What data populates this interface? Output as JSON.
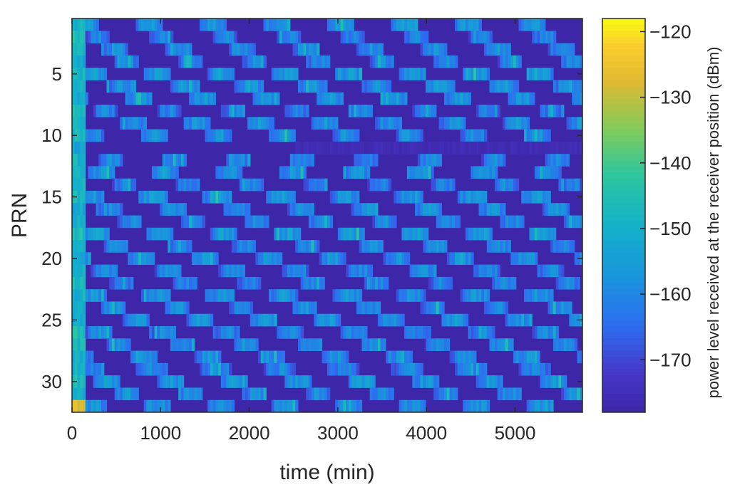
{
  "chart_data": {
    "type": "heatmap",
    "title": "",
    "xlabel": "time (min)",
    "ylabel": "PRN",
    "xlim": [
      0,
      5760
    ],
    "ylim": [
      0.5,
      32.5
    ],
    "y_reversed": true,
    "x_ticks": [
      0,
      1000,
      2000,
      3000,
      4000,
      5000
    ],
    "y_ticks": [
      5,
      10,
      15,
      20,
      25,
      30
    ],
    "rows": 32,
    "time_step_min": 30,
    "colorbar": {
      "label": "power level received at the receiver position (dBm)",
      "ticks": [
        -120,
        -130,
        -140,
        -150,
        -160,
        -170
      ],
      "range": [
        -178,
        -118
      ],
      "colormap": "parula"
    },
    "invisible_level_dbm": -178,
    "early_period_min": 150,
    "early_high_levels_dbm": [
      -150,
      -145,
      -148,
      -152,
      -149,
      -147,
      -151,
      -146,
      -150,
      -148,
      -153,
      -149,
      -150,
      -147,
      -148,
      -151,
      -149,
      -146,
      -150,
      -152,
      -148,
      -147,
      -150,
      -149,
      -151,
      -146,
      -148,
      -150,
      -149,
      -147,
      -150,
      -128
    ],
    "passes": [
      {
        "prn": 1,
        "start_min": 0,
        "period_min": 720,
        "duration_min": 300,
        "peak_dbm": -156
      },
      {
        "prn": 2,
        "start_min": 150,
        "period_min": 720,
        "duration_min": 270,
        "peak_dbm": -160
      },
      {
        "prn": 3,
        "start_min": 330,
        "period_min": 720,
        "duration_min": 300,
        "peak_dbm": -158
      },
      {
        "prn": 4,
        "start_min": 480,
        "period_min": 720,
        "duration_min": 270,
        "peak_dbm": -159
      },
      {
        "prn": 5,
        "start_min": 90,
        "period_min": 720,
        "duration_min": 300,
        "peak_dbm": -155
      },
      {
        "prn": 6,
        "start_min": 390,
        "period_min": 720,
        "duration_min": 330,
        "peak_dbm": -157
      },
      {
        "prn": 7,
        "start_min": 600,
        "period_min": 720,
        "duration_min": 300,
        "peak_dbm": -156
      },
      {
        "prn": 8,
        "start_min": 240,
        "period_min": 720,
        "duration_min": 270,
        "peak_dbm": -160
      },
      {
        "prn": 9,
        "start_min": 540,
        "period_min": 720,
        "duration_min": 300,
        "peak_dbm": -157
      },
      {
        "prn": 10,
        "start_min": 60,
        "period_min": 720,
        "duration_min": 300,
        "peak_dbm": -158
      },
      {
        "prn": 11,
        "start_min": 0,
        "period_min": 5760,
        "duration_min": 0,
        "peak_dbm": -176
      },
      {
        "prn": 12,
        "start_min": 300,
        "period_min": 720,
        "duration_min": 270,
        "peak_dbm": -159
      },
      {
        "prn": 13,
        "start_min": 180,
        "period_min": 720,
        "duration_min": 300,
        "peak_dbm": -157
      },
      {
        "prn": 14,
        "start_min": 450,
        "period_min": 720,
        "duration_min": 270,
        "peak_dbm": -160
      },
      {
        "prn": 15,
        "start_min": 30,
        "period_min": 720,
        "duration_min": 330,
        "peak_dbm": -156
      },
      {
        "prn": 16,
        "start_min": 270,
        "period_min": 720,
        "duration_min": 300,
        "peak_dbm": -158
      },
      {
        "prn": 17,
        "start_min": 510,
        "period_min": 720,
        "duration_min": 270,
        "peak_dbm": -159
      },
      {
        "prn": 18,
        "start_min": 120,
        "period_min": 720,
        "duration_min": 300,
        "peak_dbm": -155
      },
      {
        "prn": 19,
        "start_min": 360,
        "period_min": 720,
        "duration_min": 270,
        "peak_dbm": -158
      },
      {
        "prn": 20,
        "start_min": 630,
        "period_min": 720,
        "duration_min": 300,
        "peak_dbm": -157
      },
      {
        "prn": 21,
        "start_min": 210,
        "period_min": 720,
        "duration_min": 300,
        "peak_dbm": -159
      },
      {
        "prn": 22,
        "start_min": 420,
        "period_min": 720,
        "duration_min": 270,
        "peak_dbm": -160
      },
      {
        "prn": 23,
        "start_min": 60,
        "period_min": 720,
        "duration_min": 330,
        "peak_dbm": -157
      },
      {
        "prn": 24,
        "start_min": 330,
        "period_min": 720,
        "duration_min": 270,
        "peak_dbm": -158
      },
      {
        "prn": 25,
        "start_min": 570,
        "period_min": 720,
        "duration_min": 300,
        "peak_dbm": -156
      },
      {
        "prn": 26,
        "start_min": 150,
        "period_min": 720,
        "duration_min": 300,
        "peak_dbm": -159
      },
      {
        "prn": 27,
        "start_min": 390,
        "period_min": 720,
        "duration_min": 270,
        "peak_dbm": -157
      },
      {
        "prn": 28,
        "start_min": 660,
        "period_min": 720,
        "duration_min": 300,
        "peak_dbm": -158
      },
      {
        "prn": 29,
        "start_min": 0,
        "period_min": 720,
        "duration_min": 360,
        "peak_dbm": -160
      },
      {
        "prn": 30,
        "start_min": 240,
        "period_min": 720,
        "duration_min": 300,
        "peak_dbm": -156
      },
      {
        "prn": 31,
        "start_min": 480,
        "period_min": 720,
        "duration_min": 270,
        "peak_dbm": -158
      },
      {
        "prn": 32,
        "start_min": 90,
        "period_min": 720,
        "duration_min": 300,
        "peak_dbm": -157
      }
    ]
  }
}
